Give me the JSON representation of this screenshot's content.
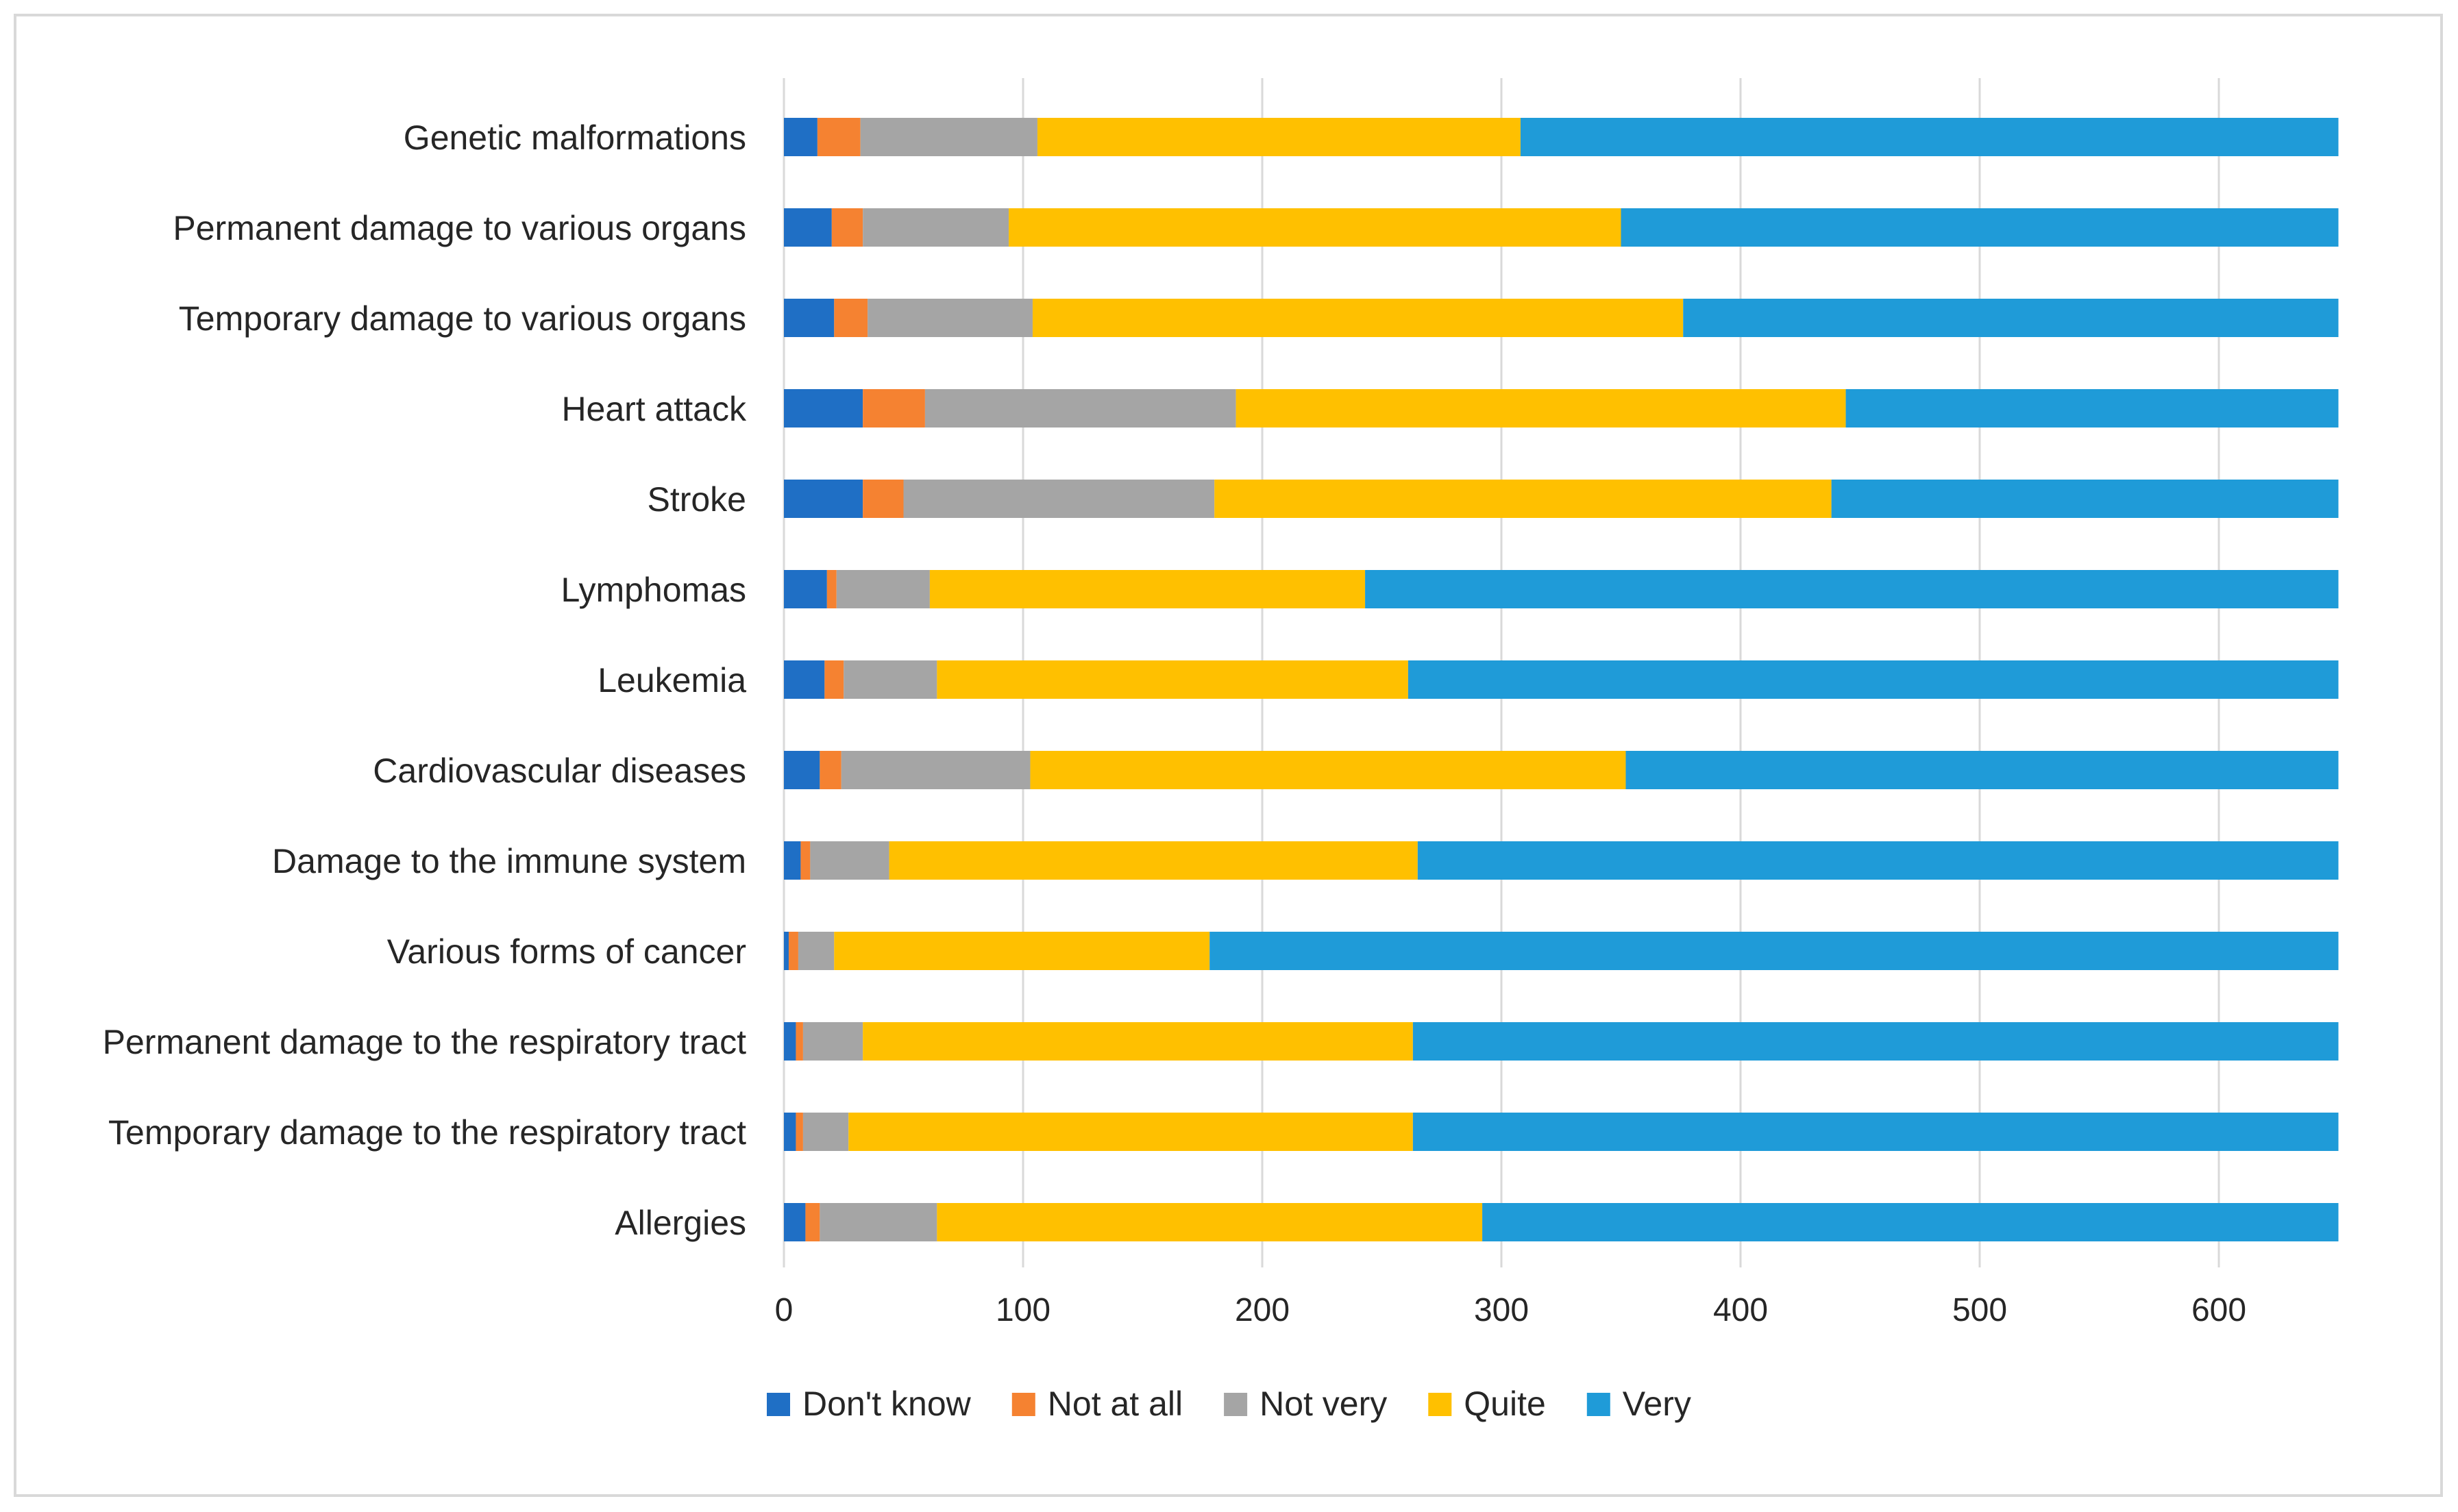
{
  "chart_data": {
    "type": "bar",
    "orientation": "horizontal",
    "stacked": true,
    "title": "",
    "xlabel": "",
    "ylabel": "",
    "xlim": [
      0,
      650
    ],
    "xticks": [
      0,
      100,
      200,
      300,
      400,
      500,
      600
    ],
    "grid": "vertical",
    "legend_position": "bottom",
    "categories": [
      "Genetic malformations",
      "Permanent damage to various organs",
      "Temporary damage to various organs",
      "Heart attack",
      "Stroke",
      "Lymphomas",
      "Leukemia",
      "Cardiovascular diseases",
      "Damage to the immune system",
      "Various forms of cancer",
      "Permanent damage to the respiratory tract",
      "Temporary damage to the respiratory tract",
      "Allergies"
    ],
    "series": [
      {
        "name": "Don't know",
        "color": "#1f6fc5",
        "values": [
          14,
          20,
          21,
          33,
          33,
          18,
          17,
          15,
          7,
          2,
          5,
          5,
          9
        ]
      },
      {
        "name": "Not at all",
        "color": "#f58231",
        "values": [
          18,
          13,
          14,
          26,
          17,
          4,
          8,
          9,
          4,
          4,
          3,
          3,
          6
        ]
      },
      {
        "name": "Not very",
        "color": "#a5a5a5",
        "values": [
          74,
          61,
          69,
          130,
          130,
          39,
          39,
          79,
          33,
          15,
          25,
          19,
          49
        ]
      },
      {
        "name": "Quite",
        "color": "#ffc000",
        "values": [
          202,
          256,
          272,
          255,
          258,
          182,
          197,
          249,
          221,
          157,
          230,
          236,
          228
        ]
      },
      {
        "name": "Very",
        "color": "#1f9bd8",
        "values": [
          342,
          300,
          274,
          206,
          212,
          407,
          389,
          298,
          385,
          472,
          387,
          387,
          358
        ]
      }
    ]
  }
}
